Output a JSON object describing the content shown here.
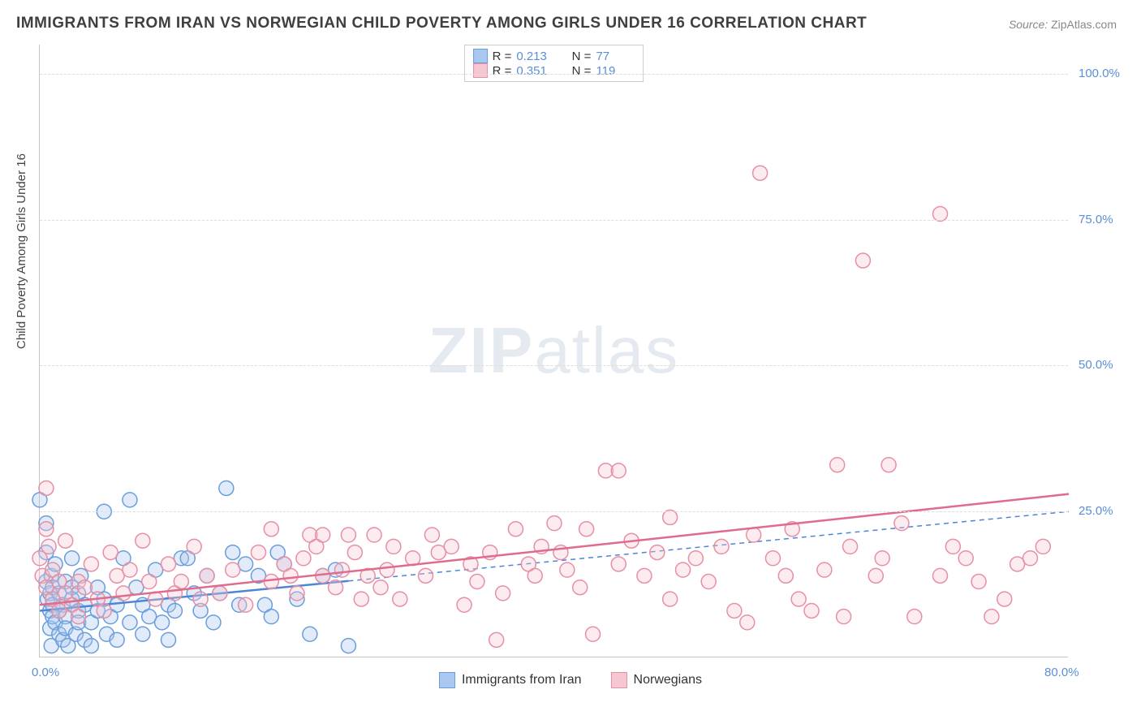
{
  "title": "IMMIGRANTS FROM IRAN VS NORWEGIAN CHILD POVERTY AMONG GIRLS UNDER 16 CORRELATION CHART",
  "source": {
    "label": "Source:",
    "text": "ZipAtlas.com"
  },
  "watermark": {
    "bold": "ZIP",
    "light": "atlas"
  },
  "yaxis": {
    "label": "Child Poverty Among Girls Under 16"
  },
  "chart": {
    "type": "scatter-with-regression",
    "xlim": [
      0,
      80
    ],
    "ylim": [
      0,
      105
    ],
    "x_ticks": [
      0,
      80
    ],
    "x_tick_labels": [
      "0.0%",
      "80.0%"
    ],
    "y_ticks": [
      25,
      50,
      75,
      100
    ],
    "y_tick_labels": [
      "25.0%",
      "50.0%",
      "75.0%",
      "100.0%"
    ],
    "background_color": "#ffffff",
    "grid_color": "#dddddd",
    "marker_radius": 9,
    "marker_opacity": 0.35,
    "series": [
      {
        "name": "Immigrants from Iran",
        "color_fill": "#a9c7ef",
        "color_stroke": "#6a9edb",
        "R": "0.213",
        "N": "77",
        "regression": {
          "x1": 0,
          "y1": 8,
          "x2": 80,
          "y2": 25,
          "solid_until_x": 24,
          "color": "#4d86d6",
          "width": 2.5
        },
        "points": [
          [
            0,
            27
          ],
          [
            0.5,
            18
          ],
          [
            0.5,
            23
          ],
          [
            0.5,
            13
          ],
          [
            0.6,
            10
          ],
          [
            0.8,
            5
          ],
          [
            0.8,
            8
          ],
          [
            0.8,
            11
          ],
          [
            0.9,
            14
          ],
          [
            0.9,
            2
          ],
          [
            1,
            9
          ],
          [
            1,
            7
          ],
          [
            1,
            12
          ],
          [
            1.2,
            6
          ],
          [
            1.2,
            16
          ],
          [
            1.5,
            4
          ],
          [
            1.5,
            8
          ],
          [
            1.5,
            11
          ],
          [
            1.8,
            3
          ],
          [
            1.8,
            9
          ],
          [
            2,
            7
          ],
          [
            2,
            5
          ],
          [
            2,
            13
          ],
          [
            2.2,
            2
          ],
          [
            2.5,
            12
          ],
          [
            2.5,
            10
          ],
          [
            2.5,
            17
          ],
          [
            2.8,
            4
          ],
          [
            3,
            8
          ],
          [
            3,
            6
          ],
          [
            3,
            11
          ],
          [
            3.2,
            14
          ],
          [
            3.5,
            9
          ],
          [
            3.5,
            3
          ],
          [
            4,
            6
          ],
          [
            4,
            2
          ],
          [
            4.5,
            8
          ],
          [
            4.5,
            12
          ],
          [
            5,
            10
          ],
          [
            5,
            25
          ],
          [
            5.2,
            4
          ],
          [
            5.5,
            7
          ],
          [
            6,
            9
          ],
          [
            6,
            3
          ],
          [
            6.5,
            17
          ],
          [
            7,
            27
          ],
          [
            7,
            6
          ],
          [
            7.5,
            12
          ],
          [
            8,
            4
          ],
          [
            8,
            9
          ],
          [
            8.5,
            7
          ],
          [
            9,
            15
          ],
          [
            9.5,
            6
          ],
          [
            10,
            9
          ],
          [
            10,
            3
          ],
          [
            10.5,
            8
          ],
          [
            11,
            17
          ],
          [
            11.5,
            17
          ],
          [
            12,
            11
          ],
          [
            12.5,
            8
          ],
          [
            13,
            14
          ],
          [
            13.5,
            6
          ],
          [
            14,
            11
          ],
          [
            14.5,
            29
          ],
          [
            15,
            18
          ],
          [
            15.5,
            9
          ],
          [
            16,
            16
          ],
          [
            17,
            14
          ],
          [
            17.5,
            9
          ],
          [
            18,
            7
          ],
          [
            18.5,
            18
          ],
          [
            19,
            16
          ],
          [
            20,
            10
          ],
          [
            21,
            4
          ],
          [
            22,
            14
          ],
          [
            23,
            15
          ],
          [
            24,
            2
          ]
        ]
      },
      {
        "name": "Norwegians",
        "color_fill": "#f6c6d1",
        "color_stroke": "#e68fa5",
        "R": "0.351",
        "N": "119",
        "regression": {
          "x1": 0,
          "y1": 9,
          "x2": 80,
          "y2": 28,
          "solid_until_x": 80,
          "color": "#e06b8c",
          "width": 2.5
        },
        "points": [
          [
            0,
            17
          ],
          [
            0.2,
            14
          ],
          [
            0.5,
            22
          ],
          [
            0.5,
            29
          ],
          [
            0.5,
            12
          ],
          [
            0.7,
            19
          ],
          [
            1,
            10
          ],
          [
            1,
            15
          ],
          [
            1.5,
            8
          ],
          [
            1.5,
            13
          ],
          [
            2,
            11
          ],
          [
            2,
            20
          ],
          [
            2.5,
            9
          ],
          [
            3,
            13
          ],
          [
            3,
            7
          ],
          [
            3.5,
            12
          ],
          [
            4,
            16
          ],
          [
            4.5,
            10
          ],
          [
            5,
            8
          ],
          [
            5.5,
            18
          ],
          [
            6,
            14
          ],
          [
            6.5,
            11
          ],
          [
            7,
            15
          ],
          [
            8,
            20
          ],
          [
            8.5,
            13
          ],
          [
            9,
            10
          ],
          [
            10,
            16
          ],
          [
            10.5,
            11
          ],
          [
            11,
            13
          ],
          [
            12,
            19
          ],
          [
            12.5,
            10
          ],
          [
            13,
            14
          ],
          [
            14,
            11
          ],
          [
            15,
            15
          ],
          [
            16,
            9
          ],
          [
            17,
            18
          ],
          [
            18,
            22
          ],
          [
            18,
            13
          ],
          [
            19,
            16
          ],
          [
            19.5,
            14
          ],
          [
            20,
            11
          ],
          [
            20.5,
            17
          ],
          [
            21,
            21
          ],
          [
            21.5,
            19
          ],
          [
            22,
            14
          ],
          [
            22,
            21
          ],
          [
            23,
            12
          ],
          [
            23.5,
            15
          ],
          [
            24,
            21
          ],
          [
            24.5,
            18
          ],
          [
            25,
            10
          ],
          [
            25.5,
            14
          ],
          [
            26,
            21
          ],
          [
            26.5,
            12
          ],
          [
            27,
            15
          ],
          [
            27.5,
            19
          ],
          [
            28,
            10
          ],
          [
            29,
            17
          ],
          [
            30,
            14
          ],
          [
            30.5,
            21
          ],
          [
            31,
            18
          ],
          [
            32,
            19
          ],
          [
            33,
            9
          ],
          [
            33.5,
            16
          ],
          [
            34,
            13
          ],
          [
            35,
            18
          ],
          [
            35.5,
            3
          ],
          [
            36,
            11
          ],
          [
            37,
            22
          ],
          [
            38,
            16
          ],
          [
            38.5,
            14
          ],
          [
            39,
            19
          ],
          [
            40,
            23
          ],
          [
            40.5,
            18
          ],
          [
            41,
            15
          ],
          [
            42,
            12
          ],
          [
            42.5,
            22
          ],
          [
            43,
            4
          ],
          [
            44,
            32
          ],
          [
            45,
            32
          ],
          [
            45,
            16
          ],
          [
            46,
            20
          ],
          [
            47,
            14
          ],
          [
            48,
            18
          ],
          [
            49,
            24
          ],
          [
            49,
            10
          ],
          [
            50,
            15
          ],
          [
            51,
            17
          ],
          [
            52,
            13
          ],
          [
            53,
            19
          ],
          [
            54,
            8
          ],
          [
            55,
            6
          ],
          [
            55.5,
            21
          ],
          [
            56,
            83
          ],
          [
            57,
            17
          ],
          [
            58,
            14
          ],
          [
            58.5,
            22
          ],
          [
            59,
            10
          ],
          [
            60,
            8
          ],
          [
            61,
            15
          ],
          [
            62,
            33
          ],
          [
            62.5,
            7
          ],
          [
            63,
            19
          ],
          [
            64,
            68
          ],
          [
            65,
            14
          ],
          [
            65.5,
            17
          ],
          [
            66,
            33
          ],
          [
            67,
            23
          ],
          [
            68,
            7
          ],
          [
            70,
            76
          ],
          [
            70,
            14
          ],
          [
            71,
            19
          ],
          [
            72,
            17
          ],
          [
            73,
            13
          ],
          [
            74,
            7
          ],
          [
            75,
            10
          ],
          [
            76,
            16
          ],
          [
            77,
            17
          ],
          [
            78,
            19
          ]
        ]
      }
    ]
  }
}
